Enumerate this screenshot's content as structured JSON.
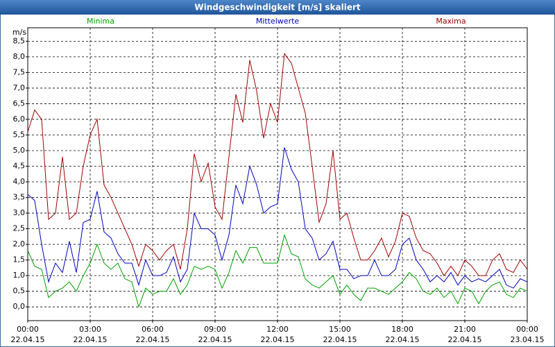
{
  "chart_data": {
    "type": "line",
    "title": "Windgeschwindigkeit [m/s] skaliert",
    "y_unit": "m/s",
    "x": [
      0,
      20,
      40,
      60,
      80,
      100,
      120,
      140,
      160,
      180,
      200,
      220,
      240,
      260,
      280,
      300,
      320,
      340,
      360,
      380,
      400,
      420,
      440,
      460,
      480,
      500,
      520,
      540,
      560,
      580,
      600,
      620,
      640,
      660,
      680,
      700,
      720,
      740,
      760,
      780,
      800,
      820,
      840,
      860,
      880,
      900,
      920,
      940,
      960,
      980,
      1000,
      1020,
      1040,
      1060,
      1080,
      1100,
      1120,
      1140,
      1160,
      1180,
      1200,
      1220,
      1240,
      1260,
      1280,
      1300,
      1320,
      1340,
      1360,
      1380,
      1400,
      1420,
      1440
    ],
    "series": [
      {
        "name": "Minima",
        "color": "#00a000",
        "values": [
          1.8,
          1.3,
          1.2,
          0.3,
          0.5,
          0.6,
          0.8,
          0.5,
          1.0,
          1.4,
          2.0,
          1.4,
          1.2,
          1.4,
          0.9,
          0.8,
          0.0,
          0.6,
          0.4,
          0.5,
          0.5,
          0.9,
          0.4,
          0.7,
          1.3,
          1.2,
          1.3,
          1.2,
          0.6,
          1.1,
          1.8,
          1.4,
          1.9,
          1.9,
          1.4,
          1.4,
          1.4,
          2.3,
          1.7,
          1.6,
          0.9,
          0.7,
          0.6,
          0.8,
          1.0,
          0.4,
          0.7,
          0.4,
          0.2,
          0.6,
          0.6,
          0.5,
          0.4,
          0.6,
          0.8,
          1.1,
          0.9,
          0.5,
          0.4,
          0.6,
          0.3,
          0.5,
          0.1,
          0.6,
          0.5,
          0.1,
          0.5,
          0.7,
          0.8,
          0.4,
          0.3,
          0.6,
          0.5
        ]
      },
      {
        "name": "Mittelwerte",
        "color": "#0000c0",
        "values": [
          3.6,
          3.4,
          2.0,
          0.8,
          1.4,
          1.1,
          2.1,
          1.1,
          2.7,
          2.8,
          3.7,
          2.4,
          2.2,
          1.7,
          1.4,
          1.4,
          0.7,
          1.5,
          1.0,
          1.0,
          1.1,
          1.6,
          0.8,
          1.2,
          3.0,
          2.5,
          2.5,
          2.3,
          1.5,
          2.3,
          3.9,
          3.3,
          4.5,
          3.9,
          3.0,
          3.2,
          3.3,
          5.1,
          4.4,
          4.0,
          2.5,
          2.2,
          1.5,
          1.7,
          2.1,
          1.2,
          1.2,
          0.9,
          1.0,
          1.0,
          1.5,
          1.0,
          1.0,
          1.2,
          2.0,
          2.2,
          1.5,
          1.2,
          0.8,
          1.0,
          0.8,
          1.1,
          0.7,
          1.0,
          0.8,
          0.9,
          0.8,
          1.0,
          1.2,
          0.7,
          0.6,
          0.9,
          0.8
        ]
      },
      {
        "name": "Maxima",
        "color": "#a00000",
        "values": [
          5.6,
          6.3,
          6.0,
          2.8,
          3.0,
          4.8,
          2.8,
          3.0,
          4.5,
          5.5,
          6.0,
          3.9,
          3.5,
          3.0,
          2.5,
          2.0,
          1.3,
          2.0,
          1.8,
          1.5,
          1.8,
          2.0,
          1.2,
          2.5,
          4.9,
          4.0,
          4.6,
          3.2,
          2.8,
          4.8,
          6.8,
          5.9,
          7.9,
          6.9,
          5.4,
          6.5,
          5.9,
          8.1,
          7.8,
          7.0,
          6.2,
          4.5,
          2.7,
          3.3,
          5.0,
          2.8,
          3.0,
          2.2,
          1.5,
          1.5,
          1.8,
          2.2,
          1.6,
          2.1,
          3.0,
          2.9,
          2.2,
          1.8,
          1.7,
          1.4,
          1.0,
          1.3,
          1.0,
          1.5,
          1.3,
          1.0,
          1.0,
          1.5,
          1.7,
          1.2,
          1.1,
          1.5,
          1.2
        ]
      }
    ],
    "xlim": [
      0,
      1440
    ],
    "xticks": [
      {
        "value": 0,
        "label": "00:00",
        "date": "22.04.15"
      },
      {
        "value": 180,
        "label": "03:00",
        "date": "22.04.15"
      },
      {
        "value": 360,
        "label": "06:00",
        "date": "22.04.15"
      },
      {
        "value": 540,
        "label": "09:00",
        "date": "22.04.15"
      },
      {
        "value": 720,
        "label": "12:00",
        "date": "22.04.15"
      },
      {
        "value": 900,
        "label": "15:00",
        "date": "22.04.15"
      },
      {
        "value": 1080,
        "label": "18:00",
        "date": "22.04.15"
      },
      {
        "value": 1260,
        "label": "21:00",
        "date": "22.04.15"
      },
      {
        "value": 1440,
        "label": "00:00",
        "date": "23.04.15"
      }
    ],
    "ylim": [
      -0.44,
      8.93
    ],
    "yticks": [
      {
        "value": 0,
        "label": "0,0"
      },
      {
        "value": 0.5,
        "label": "0,5"
      },
      {
        "value": 1,
        "label": "1,0"
      },
      {
        "value": 1.5,
        "label": "1,5"
      },
      {
        "value": 2,
        "label": "2,0"
      },
      {
        "value": 2.5,
        "label": "2,5"
      },
      {
        "value": 3,
        "label": "3,0"
      },
      {
        "value": 3.5,
        "label": "3,5"
      },
      {
        "value": 4,
        "label": "4,0"
      },
      {
        "value": 4.5,
        "label": "4,5"
      },
      {
        "value": 5,
        "label": "5,0"
      },
      {
        "value": 5.5,
        "label": "5,5"
      },
      {
        "value": 6,
        "label": "6,0"
      },
      {
        "value": 6.5,
        "label": "6,5"
      },
      {
        "value": 7,
        "label": "7,0"
      },
      {
        "value": 7.5,
        "label": "7,5"
      },
      {
        "value": 8,
        "label": "8,0"
      },
      {
        "value": 8.5,
        "label": "8,5"
      }
    ],
    "grid": true
  }
}
